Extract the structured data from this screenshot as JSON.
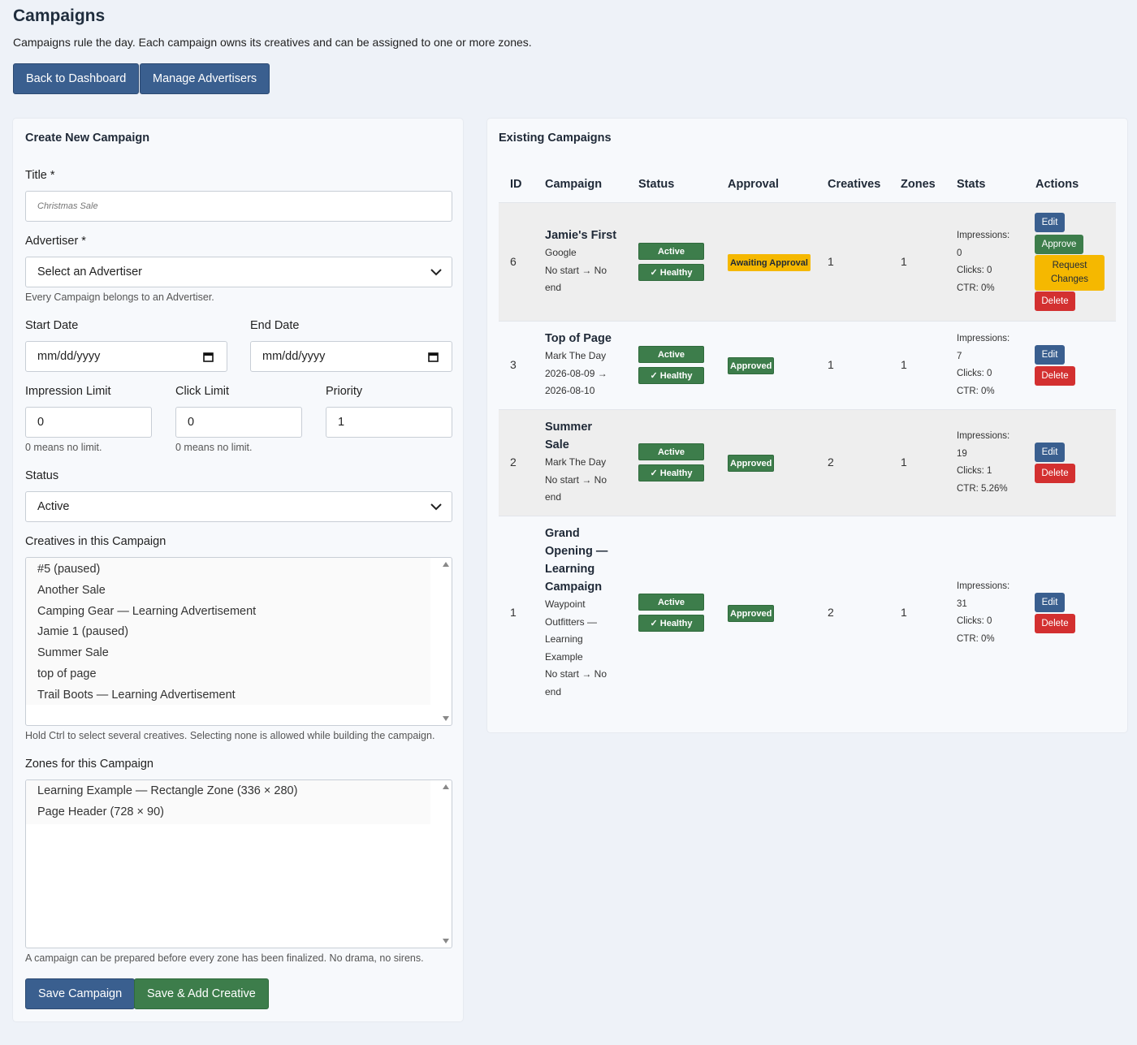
{
  "page": {
    "title": "Campaigns",
    "description": "Campaigns rule the day. Each campaign owns its creatives and can be assigned to one or more zones.",
    "buttons": {
      "back": "Back to Dashboard",
      "advertisers": "Manage Advertisers"
    }
  },
  "form": {
    "heading": "Create New Campaign",
    "title_label": "Title *",
    "title_placeholder": "Christmas Sale",
    "advertiser_label": "Advertiser *",
    "advertiser_value": "Select an Advertiser",
    "advertiser_help": "Every Campaign belongs to an Advertiser.",
    "start_label": "Start Date",
    "start_value": "mm/dd/yyyy",
    "end_label": "End Date",
    "end_value": "mm/dd/yyyy",
    "impression_label": "Impression Limit",
    "impression_value": "0",
    "impression_help": "0 means no limit.",
    "click_label": "Click Limit",
    "click_value": "0",
    "click_help": "0 means no limit.",
    "priority_label": "Priority",
    "priority_value": "1",
    "status_label": "Status",
    "status_value": "Active",
    "creatives_label": "Creatives in this Campaign",
    "creatives": [
      "#5 (paused)",
      "Another Sale",
      "Camping Gear — Learning Advertisement",
      "Jamie 1 (paused)",
      "Summer Sale",
      "top of page",
      "Trail Boots — Learning Advertisement"
    ],
    "creatives_help": "Hold Ctrl to select several creatives. Selecting none is allowed while building the campaign.",
    "zones_label": "Zones for this Campaign",
    "zones": [
      "Learning Example — Rectangle Zone (336 × 280)",
      "Page Header (728 × 90)"
    ],
    "zones_help": "A campaign can be prepared before every zone has been finalized. No drama, no sirens.",
    "save_label": "Save Campaign",
    "save_add_label": "Save & Add Creative"
  },
  "table": {
    "heading": "Existing Campaigns",
    "columns": {
      "id": "ID",
      "campaign": "Campaign",
      "status": "Status",
      "approval": "Approval",
      "creatives": "Creatives",
      "zones": "Zones",
      "stats": "Stats",
      "actions": "Actions"
    },
    "rows": [
      {
        "id": "6",
        "title_lines": [
          "Jamie's First"
        ],
        "sub_lines": [
          "Google",
          "No start → No",
          "end"
        ],
        "status": "Active",
        "health": "✓ Healthy",
        "approval": "Awaiting Approval",
        "creatives": "1",
        "zones": "1",
        "stats_lines": [
          "Impressions:",
          "0",
          "Clicks: 0",
          "CTR: 0%"
        ],
        "actions": {
          "edit": "Edit",
          "approve": "Approve",
          "request": "Request Changes",
          "delete": "Delete"
        }
      },
      {
        "id": "3",
        "title_lines": [
          "Top of Page"
        ],
        "sub_lines": [
          "Mark The Day",
          "2026-08-09 →",
          "2026-08-10"
        ],
        "status": "Active",
        "health": "✓ Healthy",
        "approval": "Approved",
        "creatives": "1",
        "zones": "1",
        "stats_lines": [
          "Impressions:",
          "7",
          "Clicks: 0",
          "CTR: 0%"
        ],
        "actions": {
          "edit": "Edit",
          "delete": "Delete"
        }
      },
      {
        "id": "2",
        "title_lines": [
          "Summer",
          "Sale"
        ],
        "sub_lines": [
          "Mark The Day",
          "No start → No",
          "end"
        ],
        "status": "Active",
        "health": "✓ Healthy",
        "approval": "Approved",
        "creatives": "2",
        "zones": "1",
        "stats_lines": [
          "Impressions:",
          "19",
          "Clicks: 1",
          "CTR: 5.26%"
        ],
        "actions": {
          "edit": "Edit",
          "delete": "Delete"
        }
      },
      {
        "id": "1",
        "title_lines": [
          "Grand",
          "Opening —",
          "Learning",
          "Campaign"
        ],
        "sub_lines": [
          "Waypoint",
          "Outfitters —",
          "Learning",
          "Example",
          "No start → No",
          "end"
        ],
        "status": "Active",
        "health": "✓ Healthy",
        "approval": "Approved",
        "creatives": "2",
        "zones": "1",
        "stats_lines": [
          "Impressions:",
          "31",
          "Clicks: 0",
          "CTR: 0%"
        ],
        "actions": {
          "edit": "Edit",
          "delete": "Delete"
        }
      }
    ]
  },
  "colors": {
    "primary": "#3a5f8f",
    "success": "#3d7d4b",
    "warning": "#f5b800",
    "danger": "#d33030",
    "background": "#eef2f8"
  }
}
